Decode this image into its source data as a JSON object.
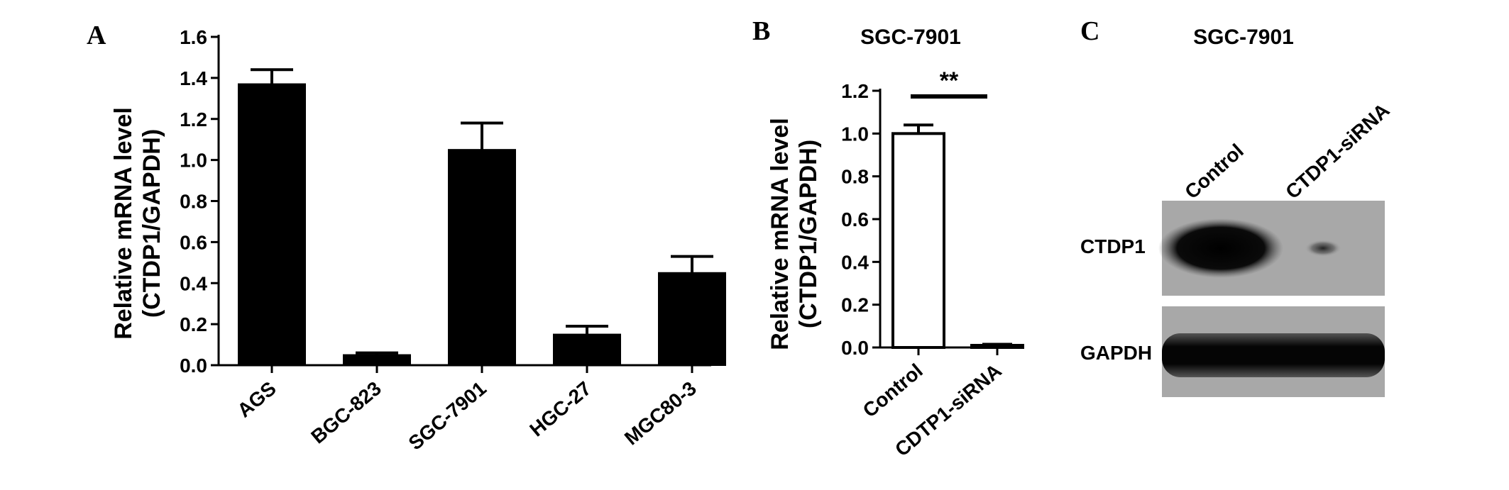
{
  "panels": {
    "a": {
      "letter": "A"
    },
    "b": {
      "letter": "B",
      "title": "SGC-7901"
    },
    "c": {
      "letter": "C",
      "title": "SGC-7901",
      "lanes": [
        "Control",
        "CTDP1-siRNA"
      ],
      "bands": [
        "CTDP1",
        "GAPDH"
      ]
    }
  },
  "chart_data": [
    {
      "type": "bar",
      "panel": "A",
      "categories": [
        "AGS",
        "BGC-823",
        "SGC-7901",
        "HGC-27",
        "MGC80-3"
      ],
      "values": [
        1.37,
        0.05,
        1.05,
        0.15,
        0.45
      ],
      "errors": [
        0.07,
        0.01,
        0.13,
        0.04,
        0.08
      ],
      "ylabel": [
        "Relative mRNA level",
        "(CTDP1/GAPDH)"
      ],
      "ylim": [
        0,
        1.6
      ],
      "yticks": [
        "0.0",
        "0.2",
        "0.4",
        "0.6",
        "0.8",
        "1.0",
        "1.2",
        "1.4",
        "1.6"
      ],
      "bar_color": "#000000",
      "grid": false
    },
    {
      "type": "bar",
      "panel": "B",
      "title": "SGC-7901",
      "categories": [
        "Control",
        "CDTP1-siRNA"
      ],
      "values": [
        1.0,
        0.01
      ],
      "errors": [
        0.04,
        0.005
      ],
      "ylabel": [
        "Relative mRNA level",
        "(CTDP1/GAPDH)"
      ],
      "ylim": [
        0,
        1.2
      ],
      "yticks": [
        "0.0",
        "0.2",
        "0.4",
        "0.6",
        "0.8",
        "1.0",
        "1.2"
      ],
      "bar_color": "#ffffff",
      "significance": "**",
      "grid": false
    }
  ]
}
